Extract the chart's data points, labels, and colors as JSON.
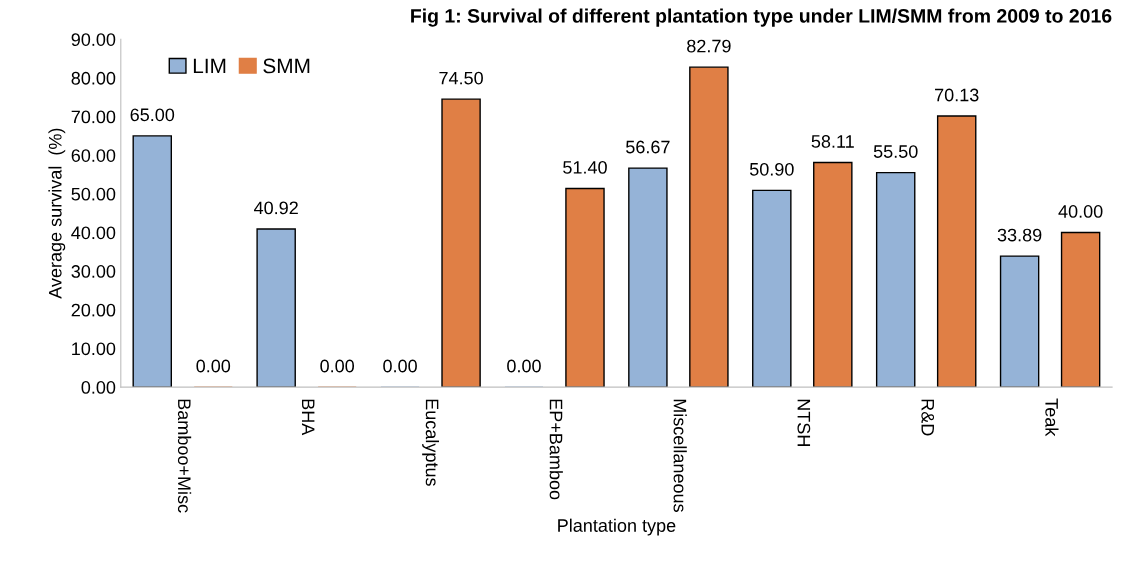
{
  "chart_data": {
    "type": "bar",
    "title": "Fig 1: Survival of different plantation type under LIM/SMM from 2009 to 2016",
    "xlabel": "Plantation type",
    "ylabel": "Average survival  (%)",
    "categories": [
      "Bamboo+Misc",
      "BHA",
      "Eucalyptus",
      "EP+Bamboo",
      "Miscellaneous",
      "NTSH",
      "R&D",
      "Teak"
    ],
    "series": [
      {
        "name": "LIM",
        "color": "#95b3d7",
        "values": [
          65.0,
          40.92,
          0.0,
          0.0,
          56.67,
          50.9,
          55.5,
          33.89
        ],
        "value_labels": [
          "65.00",
          "40.92",
          "0.00",
          "0.00",
          "56.67",
          "50.90",
          "55.50",
          "33.89"
        ]
      },
      {
        "name": "SMM",
        "color": "#e07f45",
        "values": [
          0.0,
          0.0,
          74.5,
          51.4,
          82.79,
          58.11,
          70.13,
          40.0
        ],
        "value_labels": [
          "0.00",
          "0.00",
          "74.50",
          "51.40",
          "82.79",
          "58.11",
          "70.13",
          "40.00"
        ]
      }
    ],
    "ylim": [
      0,
      90
    ],
    "yticks": [
      {
        "value": 0,
        "label": "0.00"
      },
      {
        "value": 10,
        "label": "10.00"
      },
      {
        "value": 20,
        "label": "20.00"
      },
      {
        "value": 30,
        "label": "30.00"
      },
      {
        "value": 40,
        "label": "40.00"
      },
      {
        "value": 50,
        "label": "50.00"
      },
      {
        "value": 60,
        "label": "60.00"
      },
      {
        "value": 70,
        "label": "70.00"
      },
      {
        "value": 80,
        "label": "80.00"
      },
      {
        "value": 90,
        "label": "90.00"
      }
    ],
    "grid": false,
    "legend": "top left"
  }
}
